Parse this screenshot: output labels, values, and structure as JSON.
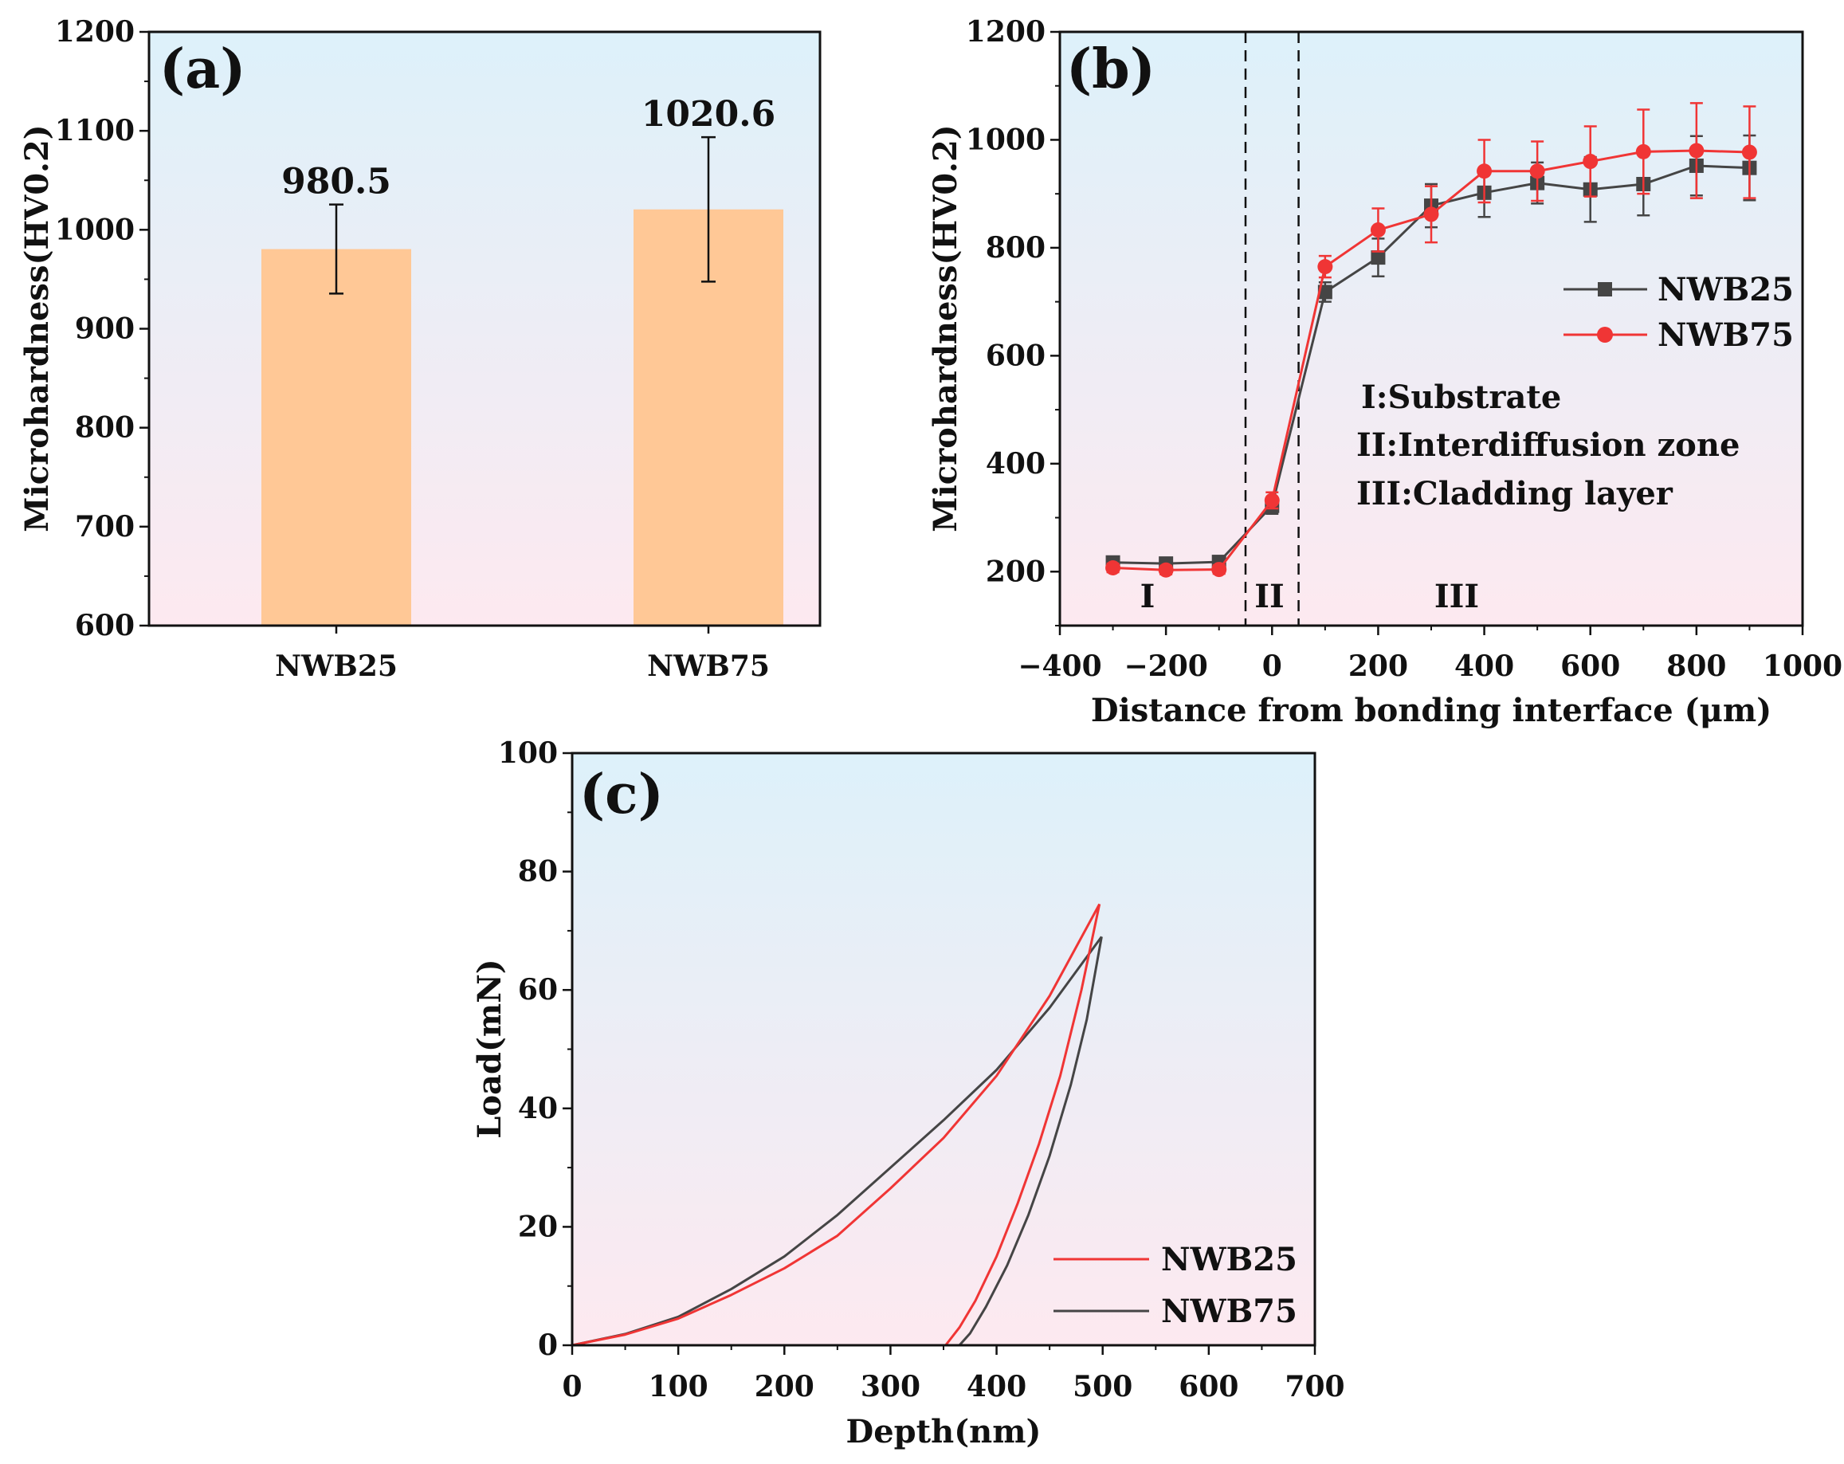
{
  "colors": {
    "bar": "#FFC896",
    "nwb25_b": "#454545",
    "nwb75_b": "#F03535",
    "red": "#F03535",
    "dark": "#454545",
    "bg_top": "#DDF1FA",
    "bg_bottom": "#FDE9F0"
  },
  "chart_data": [
    {
      "id": "a",
      "type": "bar",
      "panel_label": "(a)",
      "categories": [
        "NWB25",
        "NWB75"
      ],
      "values": [
        980.5,
        1020.6
      ],
      "errors": [
        45,
        73
      ],
      "value_labels": [
        "980.5",
        "1020.6"
      ],
      "xlabel": "",
      "ylabel": "Microhardness(HV0.2)",
      "ylim": [
        600,
        1200
      ],
      "yticks": [
        "600",
        "700",
        "800",
        "900",
        "1000",
        "1100",
        "1200"
      ]
    },
    {
      "id": "b",
      "type": "line",
      "panel_label": "(b)",
      "xlabel": "Distance from bonding interface (μm)",
      "ylabel": "Microhardness(HV0.2)",
      "xlim": [
        -400,
        1000
      ],
      "ylim": [
        100,
        1200
      ],
      "xticks": [
        "−400",
        "−200",
        "0",
        "200",
        "400",
        "600",
        "800",
        "1000"
      ],
      "yticks": [
        "200",
        "400",
        "600",
        "800",
        "1000",
        "1200"
      ],
      "series": [
        {
          "name": "NWB25",
          "marker": "square",
          "x": [
            -300,
            -200,
            -100,
            0,
            100,
            200,
            300,
            400,
            500,
            600,
            700,
            800,
            900
          ],
          "y": [
            217,
            215,
            218,
            322,
            718,
            782,
            878,
            902,
            920,
            908,
            918,
            952,
            948
          ],
          "err": [
            10,
            10,
            8,
            15,
            18,
            35,
            40,
            45,
            38,
            60,
            58,
            55,
            60
          ]
        },
        {
          "name": "NWB75",
          "marker": "circle",
          "x": [
            -300,
            -200,
            -100,
            0,
            100,
            200,
            300,
            400,
            500,
            600,
            700,
            800,
            900
          ],
          "y": [
            207,
            203,
            204,
            332,
            765,
            833,
            862,
            942,
            942,
            960,
            978,
            980,
            977
          ],
          "err": [
            8,
            8,
            8,
            15,
            20,
            40,
            52,
            58,
            55,
            65,
            78,
            88,
            85
          ]
        }
      ],
      "boundaries": [
        -50,
        50
      ],
      "zones": [
        "I",
        "II",
        "III"
      ],
      "annotations": [
        "I:Substrate",
        "II:Interdiffusion zone",
        "III:Cladding layer"
      ]
    },
    {
      "id": "c",
      "type": "line",
      "panel_label": "(c)",
      "xlabel": "Depth(nm)",
      "ylabel": "Load(mN)",
      "xlim": [
        0,
        700
      ],
      "ylim": [
        0,
        100
      ],
      "xticks": [
        "0",
        "100",
        "200",
        "300",
        "400",
        "500",
        "600",
        "700"
      ],
      "yticks": [
        "0",
        "20",
        "40",
        "60",
        "80",
        "100"
      ],
      "series": [
        {
          "name": "NWB25",
          "loading": {
            "x": [
              0,
              50,
              100,
              150,
              200,
              250,
              300,
              350,
              400,
              450,
              497
            ],
            "y": [
              0,
              1.8,
              4.5,
              8.5,
              13,
              18.5,
              26.5,
              35,
              45.5,
              59,
              74.5
            ]
          },
          "unloading": {
            "x": [
              497,
              480,
              460,
              440,
              420,
              400,
              380,
              365,
              352
            ],
            "y": [
              74.5,
              60,
              45.5,
              34,
              24,
              15,
              7.5,
              3,
              0
            ]
          }
        },
        {
          "name": "NWB75",
          "loading": {
            "x": [
              0,
              50,
              100,
              150,
              200,
              250,
              300,
              350,
              400,
              450,
              499
            ],
            "y": [
              0,
              1.9,
              4.8,
              9.5,
              15,
              22,
              30,
              38,
              46.5,
              57,
              69
            ]
          },
          "unloading": {
            "x": [
              499,
              485,
              470,
              450,
              430,
              410,
              390,
              375,
              365
            ],
            "y": [
              69,
              55,
              44,
              32,
              22,
              13.5,
              6.5,
              2,
              0
            ]
          }
        }
      ]
    }
  ]
}
